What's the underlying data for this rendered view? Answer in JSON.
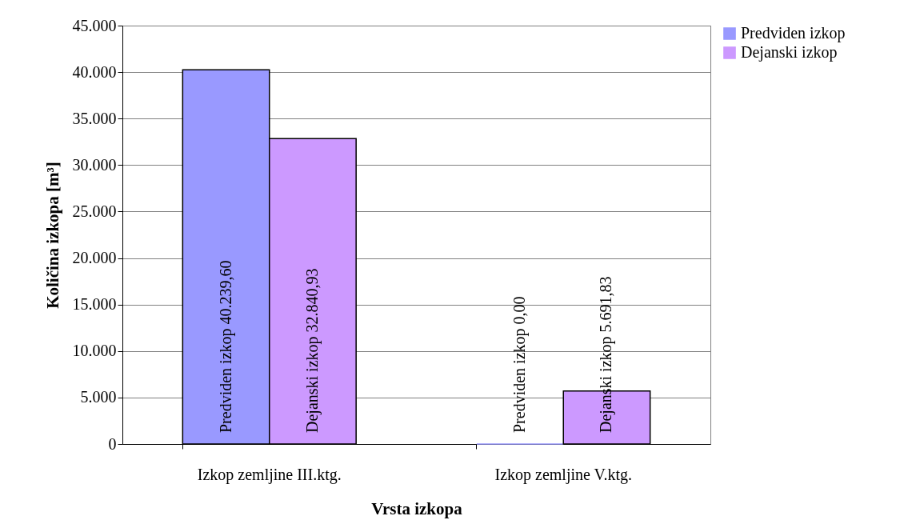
{
  "chart_data": {
    "type": "bar",
    "xlabel": "Vrsta izkopa",
    "ylabel": "Količina izkopa [m³]",
    "categories": [
      "Izkop zemljine III.ktg.",
      "Izkop zemljine V.ktg."
    ],
    "series": [
      {
        "name": "Predviden izkop",
        "color": "#9999ff",
        "values": [
          40239.6,
          0
        ],
        "value_labels": [
          "Predviden izkop  40.239,60",
          "Predviden izkop  0,00"
        ]
      },
      {
        "name": "Dejanski izkop",
        "color": "#cc99ff",
        "values": [
          32840.93,
          5691.83
        ],
        "value_labels": [
          "Dejanski izkop 32.840,93",
          "Dejanski izkop 5.691,83"
        ]
      }
    ],
    "ylim": [
      0,
      45000
    ],
    "yticks": [
      {
        "value": 0,
        "label": "0"
      },
      {
        "value": 5000,
        "label": "5.000"
      },
      {
        "value": 10000,
        "label": "10.000"
      },
      {
        "value": 15000,
        "label": "15.000"
      },
      {
        "value": 20000,
        "label": "20.000"
      },
      {
        "value": 25000,
        "label": "25.000"
      },
      {
        "value": 30000,
        "label": "30.000"
      },
      {
        "value": 35000,
        "label": "35.000"
      },
      {
        "value": 40000,
        "label": "40.000"
      },
      {
        "value": 45000,
        "label": "45.000"
      }
    ],
    "grid": "y",
    "legend": "right"
  }
}
